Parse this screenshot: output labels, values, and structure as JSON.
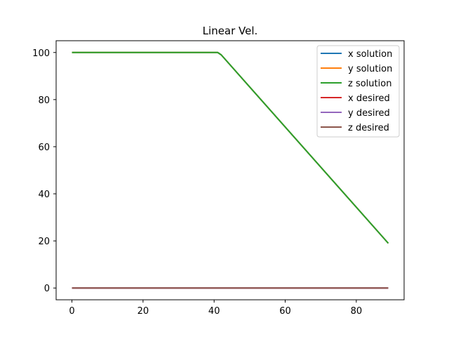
{
  "chart_data": {
    "type": "line",
    "title": "Linear Vel.",
    "xlabel": "",
    "ylabel": "",
    "xlim": [
      -4.45,
      93.45
    ],
    "ylim": [
      -5,
      105
    ],
    "xticks": [
      0,
      20,
      40,
      60,
      80
    ],
    "yticks": [
      0,
      20,
      40,
      60,
      80,
      100
    ],
    "grid": false,
    "legend": "top-right",
    "series": [
      {
        "name": "x solution",
        "color": "#1f77b4",
        "x": [
          0,
          41,
          42,
          89
        ],
        "y": [
          100,
          100,
          99,
          19
        ]
      },
      {
        "name": "y solution",
        "color": "#ff7f0e",
        "x": [
          0,
          41,
          42,
          89
        ],
        "y": [
          100,
          100,
          99,
          19
        ]
      },
      {
        "name": "z solution",
        "color": "#2ca02c",
        "x": [
          0,
          41,
          42,
          89
        ],
        "y": [
          100,
          100,
          99,
          19
        ]
      },
      {
        "name": "x desired",
        "color": "#d62728",
        "x": [
          0,
          89
        ],
        "y": [
          0,
          0
        ]
      },
      {
        "name": "y desired",
        "color": "#9467bd",
        "x": [
          0,
          89
        ],
        "y": [
          0,
          0
        ]
      },
      {
        "name": "z desired",
        "color": "#8c564b",
        "x": [
          0,
          89
        ],
        "y": [
          0,
          0
        ]
      }
    ]
  }
}
